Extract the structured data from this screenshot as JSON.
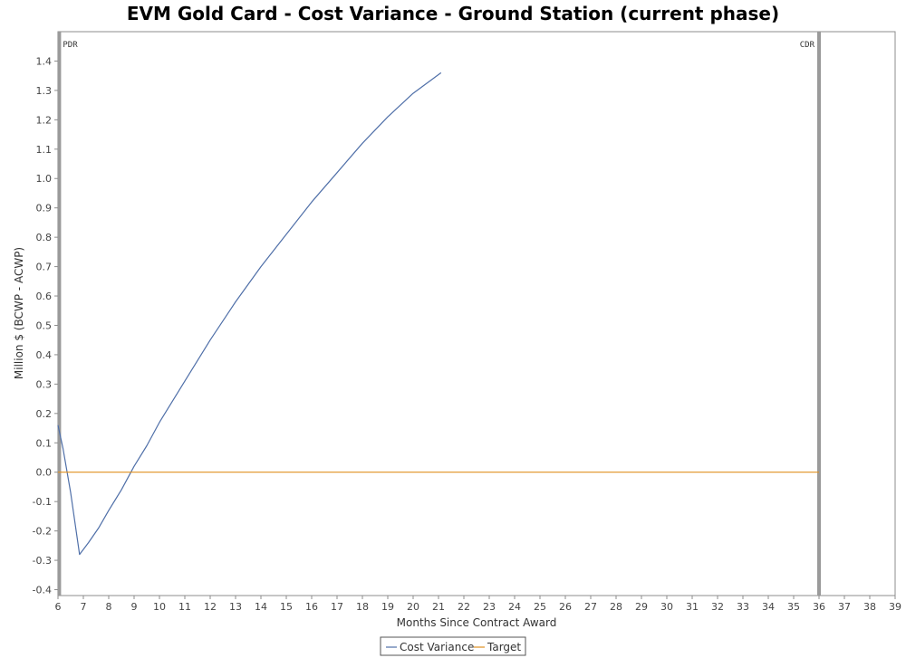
{
  "chart_data": {
    "type": "line",
    "title": "EVM Gold Card - Cost Variance - Ground Station (current phase)",
    "xlabel": "Months Since Contract Award",
    "ylabel": "Million $ (BCWP - ACWP)",
    "xlim": [
      6,
      39
    ],
    "ylim": [
      -0.42,
      1.5
    ],
    "xticks": [
      6,
      7,
      8,
      9,
      10,
      11,
      12,
      13,
      14,
      15,
      16,
      17,
      18,
      19,
      20,
      21,
      22,
      23,
      24,
      25,
      26,
      27,
      28,
      29,
      30,
      31,
      32,
      33,
      34,
      35,
      36,
      37,
      38,
      39
    ],
    "yticks": [
      -0.4,
      -0.3,
      -0.2,
      -0.1,
      0.0,
      0.1,
      0.2,
      0.3,
      0.4,
      0.5,
      0.6,
      0.7,
      0.8,
      0.9,
      1.0,
      1.1,
      1.2,
      1.3,
      1.4
    ],
    "ytick_labels": [
      "-0.4",
      "-0.3",
      "-0.2",
      "-0.1",
      "0.0",
      "0.1",
      "0.2",
      "0.3",
      "0.4",
      "0.5",
      "0.6",
      "0.7",
      "0.8",
      "0.9",
      "1.0",
      "1.1",
      "1.2",
      "1.3",
      "1.4"
    ],
    "grid": false,
    "legend_position": "bottom-center",
    "markers": [
      {
        "label": "PDR",
        "x": 6.05
      },
      {
        "label": "CDR",
        "x": 36.0
      }
    ],
    "series": [
      {
        "name": "Cost Variance",
        "color": "#4f6fa8",
        "x": [
          6.0,
          6.2,
          6.5,
          6.85,
          7.2,
          7.6,
          8.0,
          8.5,
          9.0,
          9.5,
          10.0,
          11.0,
          12.0,
          13.0,
          14.0,
          15.0,
          16.0,
          17.0,
          18.0,
          19.0,
          20.0,
          21.1
        ],
        "y": [
          0.16,
          0.08,
          -0.07,
          -0.28,
          -0.24,
          -0.19,
          -0.13,
          -0.06,
          0.02,
          0.09,
          0.17,
          0.31,
          0.45,
          0.58,
          0.7,
          0.81,
          0.92,
          1.02,
          1.12,
          1.21,
          1.29,
          1.36
        ]
      },
      {
        "name": "Target",
        "color": "#e0901f",
        "x": [
          6.0,
          36.0
        ],
        "y": [
          0.0,
          0.0
        ]
      }
    ]
  }
}
